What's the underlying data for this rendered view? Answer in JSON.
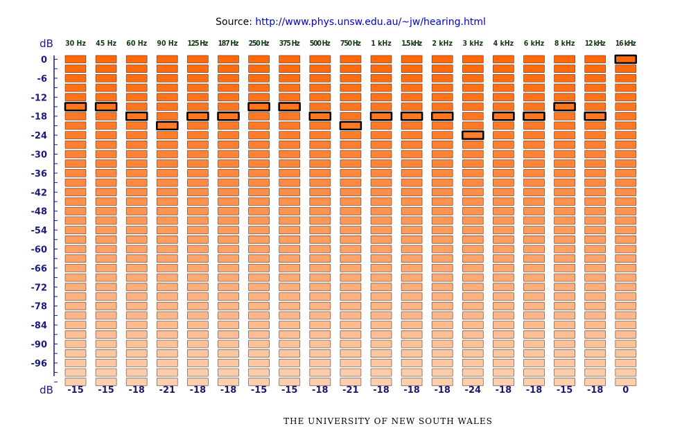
{
  "source": {
    "label": "Source:",
    "link_text": "http://www.phys.unsw.edu.au/~jw/hearing.html"
  },
  "footer": {
    "text": "THE UNIVERSITY OF NEW SOUTH WALES"
  },
  "colors": {
    "axis": "#1a1a7a",
    "frequency_label": "#123b12",
    "value_label": "#1a1a6e",
    "selected_border": "#000000",
    "step_color_top": "#ff6a0d",
    "step_color_bottom": "#ffcfae"
  },
  "chart_data": {
    "type": "bar",
    "title": "",
    "ylabel": "dB",
    "xlabel": "dB",
    "ylim": [
      -102,
      0
    ],
    "step_db": 3,
    "y_ticks": [
      "0",
      "-6",
      "-12",
      "-18",
      "-24",
      "-30",
      "-36",
      "-42",
      "-48",
      "-54",
      "-60",
      "-66",
      "-72",
      "-78",
      "-84",
      "-90",
      "-96"
    ],
    "categories": [
      "30 Hz",
      "45 Hz",
      "60 Hz",
      "90 Hz",
      "125 Hz",
      "187 Hz",
      "250 Hz",
      "375 Hz",
      "500 Hz",
      "750 Hz",
      "1 kHz",
      "1.5 kHz",
      "2 kHz",
      "3 kHz",
      "4 kHz",
      "6 kHz",
      "8 kHz",
      "12 kHz",
      "16 kHz"
    ],
    "series": [
      {
        "values": [
          -15,
          -15,
          -18,
          -21,
          -18,
          -18,
          -15,
          -15,
          -18,
          -21,
          -18,
          -18,
          -18,
          -24,
          -18,
          -18,
          -15,
          -18,
          0
        ]
      }
    ],
    "value_labels": [
      "-15",
      "-15",
      "-18",
      "-21",
      "-18",
      "-18",
      "-15",
      "-15",
      "-18",
      "-21",
      "-18",
      "-18",
      "-18",
      "-24",
      "-18",
      "-18",
      "-15",
      "-18",
      "0"
    ]
  }
}
